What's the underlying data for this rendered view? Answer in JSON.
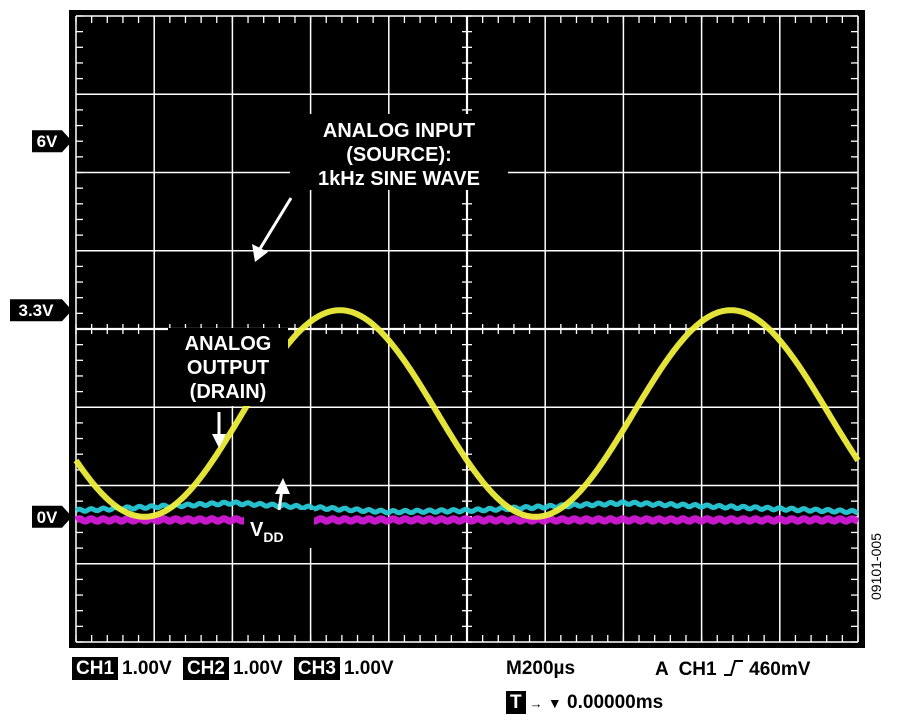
{
  "figure_id": "09101-005",
  "colors": {
    "screen_bg": "#000000",
    "grid": "#ffffff",
    "ch1_trace": "#f0ef3c",
    "ch2_trace": "#29c9d6",
    "ch3_trace": "#d21ad6"
  },
  "annotations": {
    "analog_input": [
      "ANALOG INPUT",
      "(SOURCE):",
      "1kHz SINE WAVE"
    ],
    "analog_output": [
      "ANALOG",
      "OUTPUT",
      "(DRAIN)"
    ],
    "vdd_main": "V",
    "vdd_sub": "DD"
  },
  "status_bar": {
    "ch1_label": "CH1",
    "ch1_scale": "1.00V",
    "ch2_label": "CH2",
    "ch2_scale": "1.00V",
    "ch3_label": "CH3",
    "ch3_scale": "1.00V",
    "timebase": "M200µs",
    "trigger": "A  CH1",
    "trigger_level": "460mV",
    "time_marker": "T",
    "time_offset": "0.00000ms"
  },
  "chart_data": {
    "type": "line",
    "title": "",
    "xlabel": "",
    "ylabel": "",
    "xlim": [
      0,
      2.0
    ],
    "ylim": [
      -2.0,
      8.0
    ],
    "x_unit": "ms",
    "y_unit": "V",
    "grid": true,
    "y_markers": [
      {
        "label": "6V",
        "value": 6.0
      },
      {
        "label": "3.3V",
        "value": 3.3
      },
      {
        "label": "0V",
        "value": 0.0
      }
    ],
    "series": [
      {
        "name": "CH1",
        "shape": "sine",
        "frequency_khz": 1.0,
        "offset": 1.65,
        "amplitude": 1.65,
        "phase_deg": 207,
        "x": [
          0.0,
          0.2,
          0.4,
          0.6,
          0.8,
          1.0,
          1.2,
          1.4,
          1.6,
          1.8,
          2.0
        ],
        "y": [
          0.18,
          2.55,
          3.3,
          1.9,
          0.1,
          0.18,
          2.55,
          3.3,
          1.9,
          0.1,
          0.18
        ]
      },
      {
        "name": "CH2",
        "shape": "flat",
        "x": [
          0.0,
          0.4,
          0.8,
          1.0,
          1.4,
          2.0
        ],
        "y": [
          0.1,
          0.22,
          0.08,
          0.1,
          0.22,
          0.08
        ]
      },
      {
        "name": "CH3",
        "shape": "flat",
        "x": [
          0.0,
          2.0
        ],
        "y": [
          -0.05,
          -0.05
        ]
      }
    ]
  }
}
